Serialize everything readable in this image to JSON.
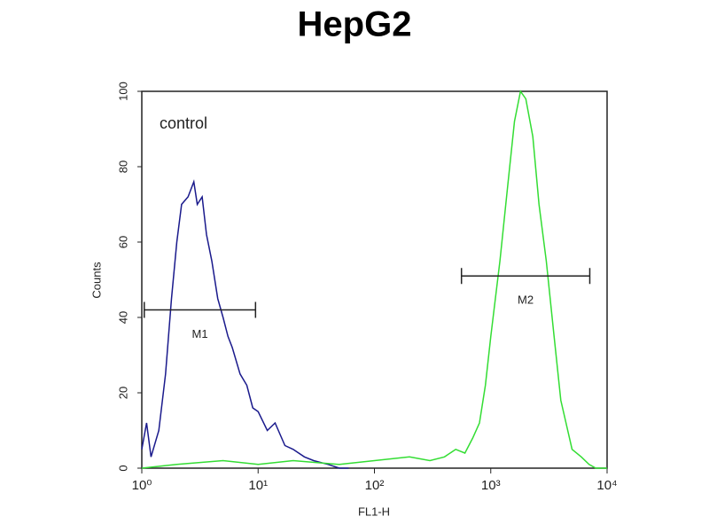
{
  "chart_data": {
    "type": "line",
    "title": "HepG2",
    "xlabel": "FL1-H",
    "ylabel": "Counts",
    "annotation": "control",
    "xscale": "log",
    "xlim": [
      1,
      10000
    ],
    "xticks": [
      {
        "value": 1,
        "label": "10⁰"
      },
      {
        "value": 10,
        "label": "10¹"
      },
      {
        "value": 100,
        "label": "10²"
      },
      {
        "value": 1000,
        "label": "10³"
      },
      {
        "value": 10000,
        "label": "10⁴"
      }
    ],
    "ylim": [
      0,
      100
    ],
    "yticks": [
      0,
      20,
      40,
      60,
      80,
      100
    ],
    "series": [
      {
        "color": "#1a1a8c",
        "x": [
          1,
          1.1,
          1.2,
          1.4,
          1.6,
          1.8,
          2,
          2.2,
          2.5,
          2.8,
          3,
          3.3,
          3.6,
          4,
          4.5,
          5,
          5.5,
          6,
          7,
          8,
          9,
          10,
          12,
          14,
          17,
          20,
          25,
          30,
          40,
          50,
          60
        ],
        "values": [
          5,
          12,
          3,
          10,
          25,
          45,
          60,
          70,
          72,
          76,
          70,
          72,
          62,
          55,
          45,
          40,
          35,
          32,
          25,
          22,
          16,
          15,
          10,
          12,
          6,
          5,
          3,
          2,
          1,
          0,
          0
        ]
      },
      {
        "color": "#33dd33",
        "x": [
          1,
          2,
          5,
          10,
          20,
          50,
          100,
          200,
          300,
          400,
          500,
          600,
          700,
          800,
          900,
          1000,
          1200,
          1400,
          1600,
          1800,
          2000,
          2300,
          2600,
          3000,
          3500,
          4000,
          5000,
          6000,
          7000,
          8000,
          10000
        ],
        "values": [
          0,
          1,
          2,
          1,
          2,
          1,
          2,
          3,
          2,
          3,
          5,
          4,
          8,
          12,
          22,
          35,
          55,
          75,
          92,
          100,
          98,
          88,
          70,
          55,
          35,
          18,
          5,
          3,
          1,
          0,
          0
        ]
      }
    ],
    "markers": [
      {
        "label": "M1",
        "range": [
          1.05,
          9.5
        ],
        "y": 42
      },
      {
        "label": "M2",
        "range": [
          560,
          7100
        ],
        "y": 51
      }
    ]
  }
}
